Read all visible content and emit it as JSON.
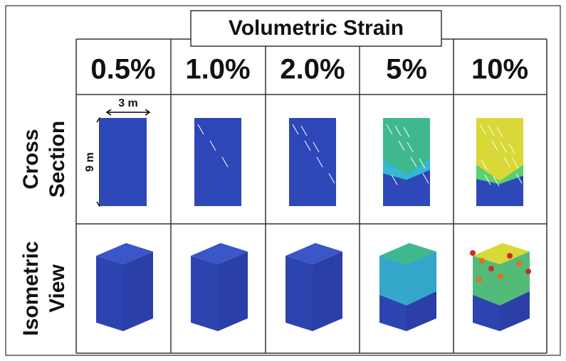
{
  "title": "Volumetric Strain",
  "columns": [
    "0.5%",
    "1.0%",
    "2.0%",
    "5%",
    "10%"
  ],
  "rows": [
    {
      "label": [
        "Cross",
        "Section"
      ]
    },
    {
      "label": [
        "Isometric",
        "View"
      ]
    }
  ],
  "dimensions": {
    "width": "3 m",
    "height": "9 m"
  }
}
